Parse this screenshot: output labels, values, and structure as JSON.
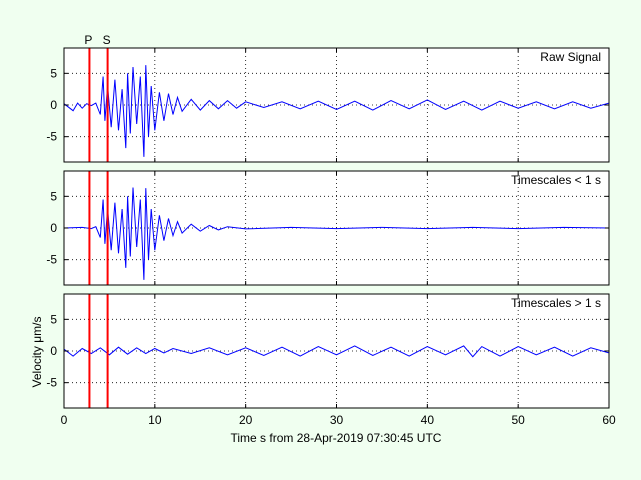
{
  "chart_data": [
    {
      "type": "line",
      "title": "",
      "label": "Raw Signal",
      "xlabel": "",
      "ylabel": "",
      "xlim": [
        0,
        60
      ],
      "ylim": [
        -9,
        9
      ],
      "xticks": [
        0,
        10,
        20,
        30,
        40,
        50,
        60
      ],
      "yticks": [
        5,
        0,
        -5
      ],
      "ytick_labels": [
        "5",
        "0",
        "-5"
      ],
      "grid": true,
      "series": [
        {
          "color": "#0000ff",
          "x": [
            0,
            1,
            1.5,
            2,
            2.5,
            3,
            3.5,
            4,
            4.3,
            4.5,
            4.8,
            5.2,
            5.6,
            6,
            6.4,
            6.8,
            7,
            7.3,
            7.6,
            8,
            8.4,
            8.8,
            9,
            9.3,
            9.6,
            10,
            10.5,
            11,
            11.5,
            12,
            12.5,
            13,
            14,
            15,
            16,
            17,
            18,
            19,
            20,
            22,
            24,
            26,
            28,
            30,
            32,
            34,
            36,
            38,
            40,
            42,
            44,
            46,
            48,
            50,
            52,
            54,
            56,
            58,
            60
          ],
          "y": [
            0.2,
            -0.9,
            0.3,
            -0.5,
            0.2,
            -0.1,
            0.3,
            -1.5,
            4.5,
            -2.5,
            3,
            -3.5,
            4,
            -4,
            2.5,
            -6.8,
            5,
            -4.5,
            6,
            -3,
            4.5,
            -8.2,
            6.3,
            -5,
            3,
            -4,
            2,
            -2.5,
            1.8,
            -1.5,
            1.2,
            -1,
            0.9,
            -0.8,
            0.7,
            -0.6,
            0.7,
            -0.5,
            0.5,
            -0.4,
            0.5,
            -0.6,
            0.6,
            -0.7,
            0.6,
            -0.8,
            0.7,
            -0.6,
            0.8,
            -0.7,
            0.6,
            -0.8,
            0.6,
            -0.5,
            0.5,
            -0.6,
            0.5,
            -0.5,
            0.3
          ]
        }
      ]
    },
    {
      "type": "line",
      "title": "",
      "label": "Timescales < 1 s",
      "xlabel": "",
      "ylabel": "",
      "xlim": [
        0,
        60
      ],
      "ylim": [
        -9,
        9
      ],
      "xticks": [
        0,
        10,
        20,
        30,
        40,
        50,
        60
      ],
      "yticks": [
        5,
        0,
        -5
      ],
      "ytick_labels": [
        "5",
        "0",
        "-5"
      ],
      "grid": true,
      "series": [
        {
          "color": "#0000ff",
          "x": [
            0,
            2,
            3,
            3.5,
            4,
            4.3,
            4.5,
            4.8,
            5.2,
            5.6,
            6,
            6.4,
            6.8,
            7,
            7.3,
            7.6,
            8,
            8.4,
            8.8,
            9,
            9.3,
            9.6,
            10,
            10.5,
            11,
            11.5,
            12,
            12.5,
            13,
            14,
            15,
            16,
            17,
            18,
            20,
            25,
            30,
            35,
            40,
            45,
            50,
            55,
            60
          ],
          "y": [
            0,
            0.1,
            -0.1,
            0.2,
            -1.5,
            4.5,
            -2.5,
            3,
            -3.5,
            4,
            -4,
            3,
            -6.3,
            5,
            -4.5,
            6.4,
            -3,
            4.5,
            -8.2,
            6.3,
            -5,
            3,
            -3.5,
            2,
            -2,
            1.5,
            -1.2,
            1,
            -0.8,
            0.6,
            -0.5,
            0.4,
            -0.3,
            0.2,
            -0.15,
            0.1,
            -0.1,
            0.1,
            -0.1,
            0.1,
            -0.1,
            0.1,
            0
          ]
        }
      ]
    },
    {
      "type": "line",
      "title": "",
      "label": "Timescales > 1 s",
      "xlabel": "Time s from 28-Apr-2019 07:30:45 UTC",
      "ylabel": "Velocity μm/s",
      "xlim": [
        0,
        60
      ],
      "ylim": [
        -9,
        9
      ],
      "xticks": [
        0,
        10,
        20,
        30,
        40,
        50,
        60
      ],
      "yticks": [
        5,
        0,
        -5
      ],
      "ytick_labels": [
        "5",
        "0",
        "-5"
      ],
      "grid": true,
      "series": [
        {
          "color": "#0000ff",
          "x": [
            0,
            1,
            2,
            3,
            4,
            5,
            6,
            7,
            8,
            9,
            10,
            11,
            12,
            14,
            16,
            18,
            20,
            22,
            24,
            26,
            28,
            30,
            32,
            34,
            36,
            38,
            40,
            42,
            44,
            45,
            46,
            48,
            50,
            52,
            54,
            56,
            58,
            60
          ],
          "y": [
            0.3,
            -0.8,
            0.4,
            -0.4,
            0.5,
            -0.6,
            0.6,
            -0.5,
            0.5,
            -0.4,
            0.4,
            -0.3,
            0.4,
            -0.4,
            0.5,
            -0.6,
            0.5,
            -0.7,
            0.6,
            -0.8,
            0.7,
            -0.6,
            0.8,
            -0.7,
            0.6,
            -0.8,
            0.7,
            -0.6,
            0.8,
            -0.9,
            0.7,
            -0.8,
            0.7,
            -0.6,
            0.6,
            -0.8,
            0.5,
            -0.3
          ]
        }
      ]
    }
  ],
  "markers": [
    {
      "label": "P",
      "x": 2.8,
      "color": "#ff0000"
    },
    {
      "label": "S",
      "x": 4.8,
      "color": "#ff0000"
    }
  ]
}
